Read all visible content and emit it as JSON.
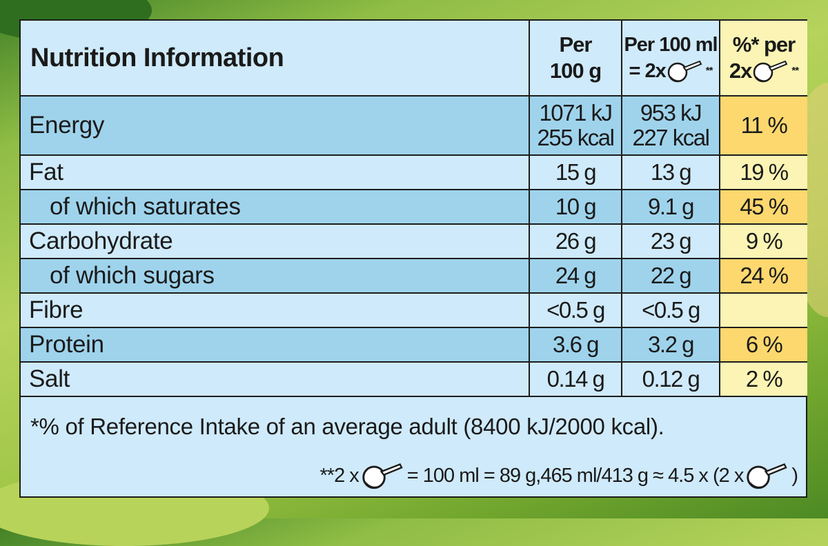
{
  "header": {
    "title": "Nutrition Information",
    "col1_line1": "Per",
    "col1_line2": "100 g",
    "col2_line1": "Per 100 ml",
    "col2_line2_prefix": "= 2x",
    "col2_stars": "**",
    "col3_line1": "%* per",
    "col3_line2_prefix": "2x",
    "col3_stars": "**"
  },
  "rows": [
    {
      "name": "Energy",
      "per100g_1": "1071 kJ",
      "per100g_2": "255 kcal",
      "per100ml_1": "953 kJ",
      "per100ml_2": "227 kcal",
      "ri": "11 %"
    },
    {
      "name": "Fat",
      "per100g": "15 g",
      "per100ml": "13 g",
      "ri": "19 %"
    },
    {
      "name": "of which saturates",
      "per100g": "10 g",
      "per100ml": "9.1 g",
      "ri": "45 %"
    },
    {
      "name": "Carbohydrate",
      "per100g": "26 g",
      "per100ml": "23 g",
      "ri": "9 %"
    },
    {
      "name": "of which sugars",
      "per100g": "24 g",
      "per100ml": "22 g",
      "ri": "24 %"
    },
    {
      "name": "Fibre",
      "per100g": "<0.5 g",
      "per100ml": "<0.5 g",
      "ri": ""
    },
    {
      "name": "Protein",
      "per100g": "3.6 g",
      "per100ml": "3.2 g",
      "ri": "6 %"
    },
    {
      "name": "Salt",
      "per100g": "0.14 g",
      "per100ml": "0.12 g",
      "ri": "2 %"
    }
  ],
  "footnotes": {
    "reference": "*% of Reference Intake of an average adult (8400 kJ/2000 kcal).",
    "serving_prefix": "**2 x",
    "serving_middle": "= 100 ml = 89 g,465 ml/413 g ≈ 4.5 x (2 x",
    "serving_suffix": ")"
  },
  "colors": {
    "panel_light_blue": "#cfeafa",
    "row_dark_blue": "#9fd3ec",
    "ri_light_yellow": "#fbf4b4",
    "ri_dark_yellow": "#fcd86e"
  },
  "icons": {
    "scoop": "ice-cream-scoop-icon"
  }
}
